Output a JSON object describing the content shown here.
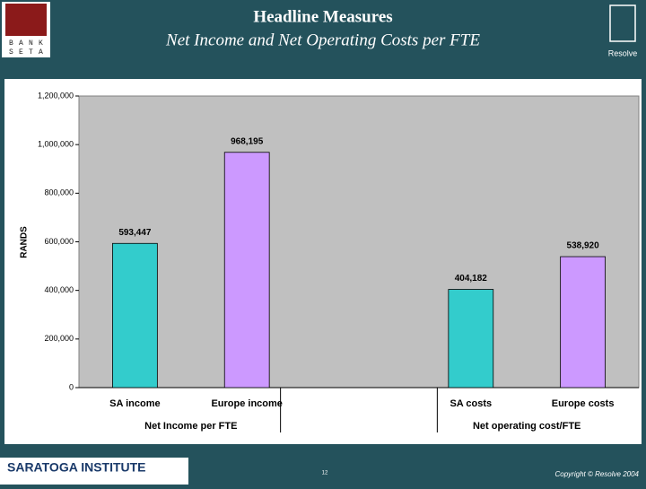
{
  "header": {
    "title": "Headline Measures",
    "subtitle": "Net Income and Net Operating Costs per FTE",
    "logo_left": [
      "B",
      "A",
      "N",
      "K",
      "S",
      "E",
      "T",
      "A"
    ],
    "logo_right": "Resolve"
  },
  "chart_data": {
    "type": "bar",
    "y_label": "RANDS",
    "categories": [
      "SA income",
      "Europe income",
      null,
      "SA costs",
      "Europe costs"
    ],
    "values": [
      593447,
      968195,
      null,
      404182,
      538920
    ],
    "value_labels": [
      "593,447",
      "968,195",
      null,
      "404,182",
      "538,920"
    ],
    "colors": [
      "#33cccc",
      "#cc99ff",
      null,
      "#33cccc",
      "#cc99ff"
    ],
    "groups": [
      "Net Income per FTE",
      "Net operating cost/FTE"
    ],
    "ylim": [
      0,
      1200000
    ],
    "yticks": [
      0,
      {
        "value": 200000,
        "label": "200,000"
      },
      {
        "value": 400000,
        "label": "400,000"
      },
      {
        "value": 600000,
        "label": "600,000"
      },
      {
        "value": 800000,
        "label": "800,000"
      },
      {
        "value": 1000000,
        "label": "1,000,000"
      },
      {
        "value": 1200000,
        "label": "1,200,000"
      }
    ],
    "plot_background": "#c0c0c0",
    "grid": false
  },
  "footer": {
    "logo": "SARATOGA INSTITUTE",
    "page": "12",
    "copyright": "Copyright © Resolve 2004"
  }
}
